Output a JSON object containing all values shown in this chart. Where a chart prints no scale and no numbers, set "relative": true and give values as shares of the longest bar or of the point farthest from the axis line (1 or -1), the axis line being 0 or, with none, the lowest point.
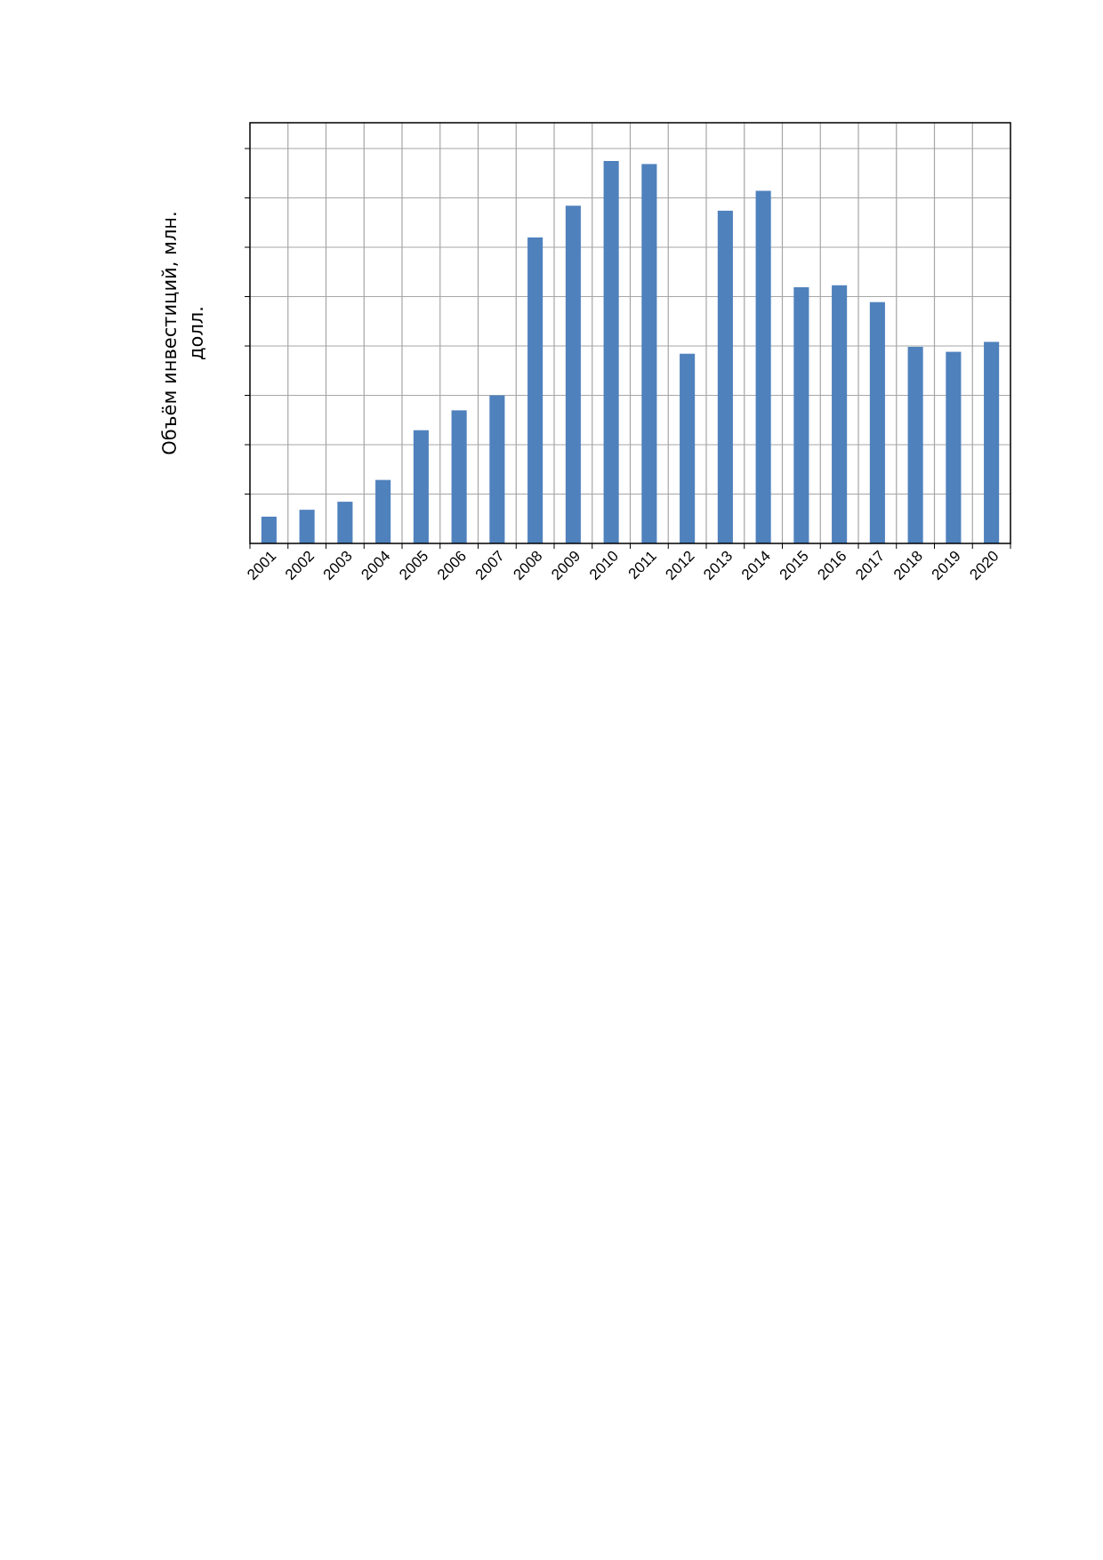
{
  "chart_data": {
    "type": "bar",
    "ylabel": "Объём инвестиций, млн. долл.",
    "relative": true,
    "grid": true,
    "categories": [
      "2001",
      "2002",
      "2003",
      "2004",
      "2005",
      "2006",
      "2007",
      "2008",
      "2009",
      "2010",
      "2011",
      "2012",
      "2013",
      "2014",
      "2015",
      "2016",
      "2017",
      "2018",
      "2019",
      "2020"
    ],
    "values": [
      0.07,
      0.088,
      0.109,
      0.166,
      0.296,
      0.348,
      0.387,
      0.8,
      0.883,
      1,
      0.992,
      0.496,
      0.87,
      0.922,
      0.67,
      0.675,
      0.631,
      0.514,
      0.501,
      0.527
    ],
    "color": "#4f81bd"
  }
}
